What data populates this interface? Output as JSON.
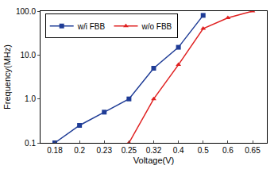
{
  "chart_data": {
    "type": "line",
    "x_label": "Voltage(V)",
    "y_label": "Frequency(MHz)",
    "categories": [
      "0.18",
      "0.2",
      "0.23",
      "0.25",
      "0.32",
      "0.4",
      "0.5",
      "0.6",
      "0.65"
    ],
    "series": [
      {
        "name": "w/i FBB",
        "color": "#1f3c96",
        "marker": "square",
        "line_style": "solid",
        "values": [
          0.1,
          0.25,
          0.5,
          1.0,
          5,
          15,
          80,
          null,
          null
        ]
      },
      {
        "name": "w/o FBB",
        "color": "#e02020",
        "marker": "triangle-up",
        "line_style": "solid",
        "values": [
          null,
          null,
          null,
          0.1,
          1.0,
          6,
          40,
          70,
          100
        ]
      }
    ],
    "log": "y",
    "ylim": [
      0.1,
      100
    ],
    "yticks": [
      0.1,
      {
        "value": 1,
        "label": "1.0"
      },
      {
        "value": 10,
        "label": "10.0"
      },
      {
        "value": 100,
        "label": "100.0"
      }
    ],
    "grid": false,
    "legend": "upper left"
  }
}
